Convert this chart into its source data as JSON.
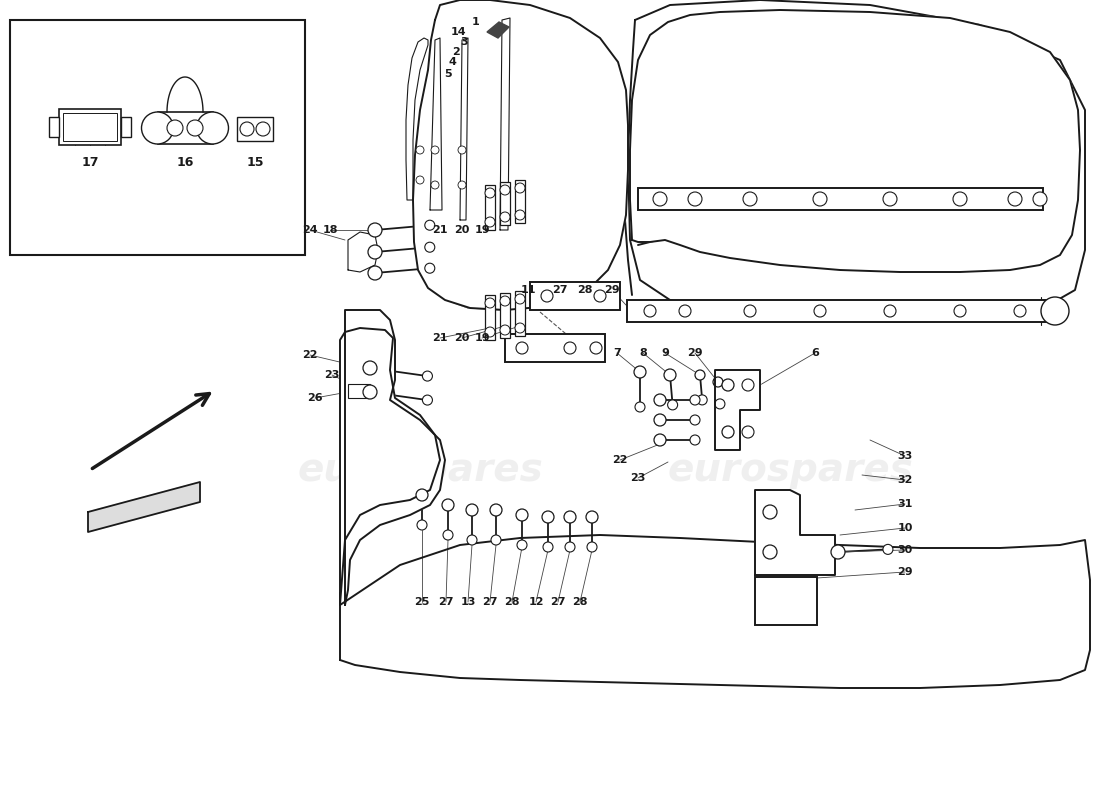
{
  "bg": "#ffffff",
  "lc": "#1a1a1a",
  "wm": "eurospares",
  "wm_color": "#cccccc",
  "wm_alpha": 0.3,
  "fig_w": 11.0,
  "fig_h": 8.0,
  "dpi": 100
}
